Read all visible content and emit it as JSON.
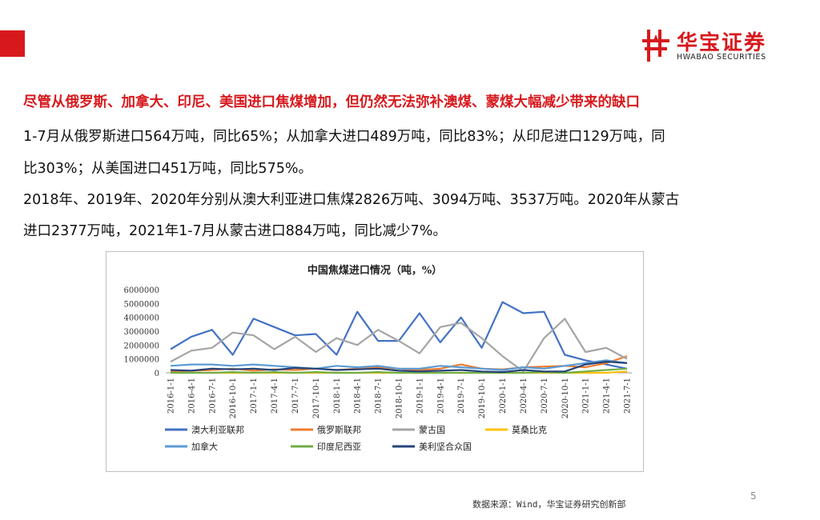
{
  "brand": {
    "name_cn": "华宝证券",
    "name_en": "HWABAO SECURITIES",
    "color": "#d7191d"
  },
  "headline": "尽管从俄罗斯、加拿大、印尼、美国进口焦煤增加，但仍然无法弥补澳煤、蒙煤大幅减少带来的缺口",
  "paragraphs": [
    "1-7月从俄罗斯进口564万吨，同比65%；从加拿大进口489万吨，同比83%；从印尼进口129万吨，同",
    "比303%；从美国进口451万吨，同比575%。",
    "2018年、2019年、2020年分别从澳大利亚进口焦煤2826万吨、3094万吨、3537万吨。2020年从蒙古",
    "进口2377万吨，2021年1-7月从蒙古进口884万吨，同比减少7%。"
  ],
  "source": "数据来源：Wind，华宝证券研究创新部",
  "page_number": "5",
  "chart_data": {
    "type": "line",
    "title": "中国焦煤进口情况（吨，%）",
    "ylim": [
      0,
      6000000
    ],
    "yticks": [
      "0",
      "1000000",
      "2000000",
      "3000000",
      "4000000",
      "5000000",
      "6000000"
    ],
    "grid": false,
    "legend_position": "bottom",
    "x": [
      "2016-1-1",
      "2016-4-1",
      "2016-7-1",
      "2016-10-1",
      "2017-1-1",
      "2017-4-1",
      "2017-7-1",
      "2017-10-1",
      "2018-1-1",
      "2018-4-1",
      "2018-7-1",
      "2018-10-1",
      "2019-1-1",
      "2019-4-1",
      "2019-7-1",
      "2019-10-1",
      "2020-1-1",
      "2020-4-1",
      "2020-7-1",
      "2020-10-1",
      "2021-1-1",
      "2021-4-1",
      "2021-7-1"
    ],
    "series": [
      {
        "name": "澳大利亚联邦",
        "color": "#4472c4",
        "values": [
          1700000,
          2600000,
          3100000,
          1300000,
          3900000,
          3300000,
          2700000,
          2800000,
          1300000,
          4400000,
          2300000,
          2300000,
          4300000,
          2200000,
          4000000,
          1800000,
          5100000,
          4300000,
          4400000,
          1300000,
          900000,
          600000,
          300000
        ]
      },
      {
        "name": "俄罗斯联邦",
        "color": "#ed7d31",
        "values": [
          100000,
          150000,
          200000,
          300000,
          150000,
          250000,
          200000,
          300000,
          200000,
          300000,
          400000,
          300000,
          200000,
          300000,
          600000,
          300000,
          250000,
          400000,
          450000,
          500000,
          400000,
          700000,
          1200000
        ]
      },
      {
        "name": "蒙古国",
        "color": "#a5a5a5",
        "values": [
          800000,
          1600000,
          1800000,
          2900000,
          2700000,
          1700000,
          2600000,
          1500000,
          2500000,
          2000000,
          3100000,
          2300000,
          1400000,
          3300000,
          3600000,
          2500000,
          1200000,
          100000,
          2500000,
          3900000,
          1500000,
          1800000,
          1000000
        ]
      },
      {
        "name": "莫桑比克",
        "color": "#ffc000",
        "values": [
          0,
          0,
          0,
          0,
          0,
          0,
          0,
          0,
          0,
          0,
          0,
          0,
          0,
          0,
          0,
          0,
          0,
          0,
          0,
          0,
          0,
          0,
          100000
        ]
      },
      {
        "name": "加拿大",
        "color": "#5b9bd5",
        "values": [
          500000,
          600000,
          600000,
          500000,
          600000,
          500000,
          400000,
          300000,
          500000,
          400000,
          500000,
          300000,
          300000,
          500000,
          400000,
          300000,
          200000,
          400000,
          300000,
          500000,
          700000,
          900000,
          700000
        ]
      },
      {
        "name": "印度尼西亚",
        "color": "#70ad47",
        "values": [
          0,
          0,
          0,
          50000,
          0,
          50000,
          0,
          50000,
          0,
          0,
          50000,
          0,
          0,
          0,
          0,
          0,
          0,
          0,
          50000,
          0,
          100000,
          200000,
          300000
        ]
      },
      {
        "name": "美利坚合众国",
        "color": "#264478",
        "values": [
          200000,
          150000,
          300000,
          250000,
          300000,
          200000,
          350000,
          300000,
          200000,
          250000,
          300000,
          150000,
          100000,
          150000,
          200000,
          100000,
          50000,
          200000,
          100000,
          100000,
          600000,
          800000,
          700000
        ]
      }
    ]
  }
}
